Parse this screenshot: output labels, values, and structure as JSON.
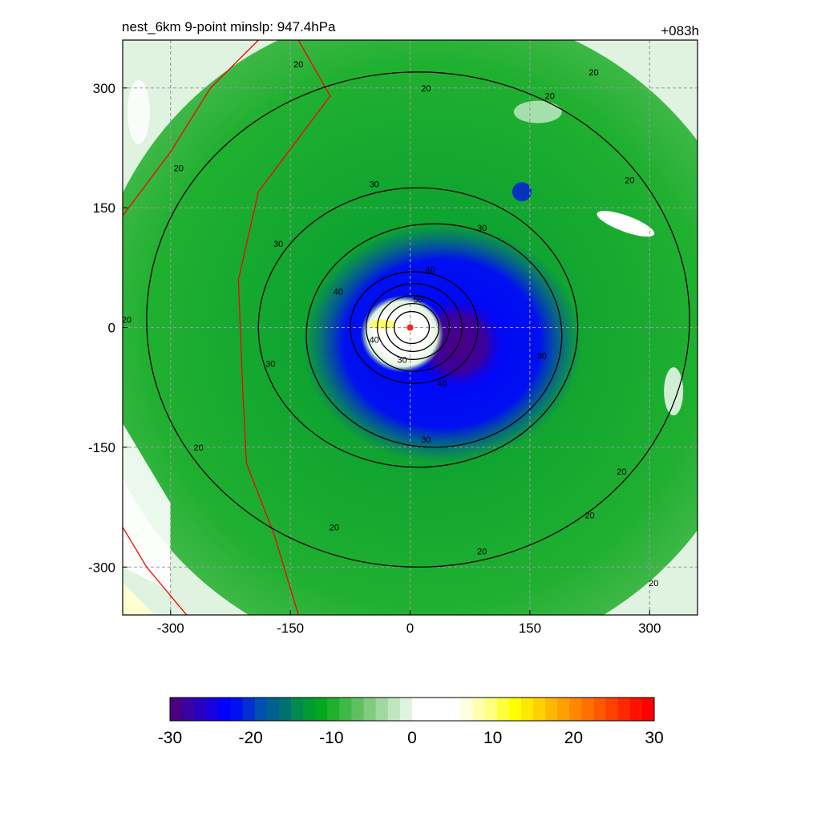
{
  "header": {
    "left": "nest_6km  9-point minslp: 947.4hPa",
    "right": "+083h"
  },
  "chart_data": {
    "type": "heatmap",
    "title": "nest_6km  9-point minslp: 947.4hPa",
    "subtitle": "+083h",
    "xlabel": "",
    "ylabel": "",
    "xlim": [
      -360,
      360
    ],
    "ylim": [
      -360,
      360
    ],
    "x_ticks": [
      -300,
      -150,
      0,
      150,
      300
    ],
    "y_ticks": [
      -300,
      -150,
      0,
      150,
      300
    ],
    "grid": true,
    "center_marker": {
      "x": 0,
      "y": 0,
      "color": "#ff2020"
    },
    "shading": {
      "description_values": "filled field, cool colors negative, warm colors positive",
      "core": {
        "x": 0,
        "y": 0,
        "value": 2
      },
      "min_band": {
        "x": 60,
        "y": -20,
        "value": -28
      }
    },
    "contours": {
      "color": "#000000",
      "levels": [
        20,
        30,
        40,
        50
      ],
      "labels": [
        {
          "x": 20,
          "y": 300,
          "text": "20"
        },
        {
          "x": 230,
          "y": 320,
          "text": "20"
        },
        {
          "x": -140,
          "y": 330,
          "text": "20"
        },
        {
          "x": -290,
          "y": 200,
          "text": "20"
        },
        {
          "x": -355,
          "y": 10,
          "text": "20"
        },
        {
          "x": -265,
          "y": -150,
          "text": "20"
        },
        {
          "x": -95,
          "y": -250,
          "text": "20"
        },
        {
          "x": 90,
          "y": -280,
          "text": "20"
        },
        {
          "x": 265,
          "y": -180,
          "text": "20"
        },
        {
          "x": 225,
          "y": -235,
          "text": "20"
        },
        {
          "x": 305,
          "y": -320,
          "text": "20"
        },
        {
          "x": 175,
          "y": 290,
          "text": "20"
        },
        {
          "x": 275,
          "y": 185,
          "text": "20"
        },
        {
          "x": -45,
          "y": 180,
          "text": "30"
        },
        {
          "x": 90,
          "y": 125,
          "text": "30"
        },
        {
          "x": -165,
          "y": 105,
          "text": "30"
        },
        {
          "x": -175,
          "y": -45,
          "text": "30"
        },
        {
          "x": 165,
          "y": -35,
          "text": "30"
        },
        {
          "x": 20,
          "y": -140,
          "text": "30"
        },
        {
          "x": -90,
          "y": 45,
          "text": "40"
        },
        {
          "x": 25,
          "y": 73,
          "text": "40"
        },
        {
          "x": -45,
          "y": -15,
          "text": "40"
        },
        {
          "x": 40,
          "y": -70,
          "text": "40"
        },
        {
          "x": 10,
          "y": 35,
          "text": "50"
        },
        {
          "x": -10,
          "y": -40,
          "text": "30"
        }
      ]
    },
    "lines": {
      "color": "#ff0000",
      "description": "red boundary lines"
    },
    "colorbar": {
      "ticks": [
        -30,
        -20,
        -10,
        0,
        10,
        20,
        30
      ],
      "colors": [
        "#4b0082",
        "#3a00a0",
        "#2a00c0",
        "#1800e0",
        "#0000ff",
        "#0010f0",
        "#0030d0",
        "#0050b0",
        "#006090",
        "#007070",
        "#008a50",
        "#009a30",
        "#00a820",
        "#20b030",
        "#40b848",
        "#60c060",
        "#80cc80",
        "#a0d8a0",
        "#c0e6c0",
        "#e0f2e0",
        "#ffffff",
        "#ffffff",
        "#ffffff",
        "#ffffff",
        "#ffffe0",
        "#ffffb0",
        "#ffff80",
        "#ffff40",
        "#ffff00",
        "#ffe800",
        "#ffd000",
        "#ffb800",
        "#ffa000",
        "#ff8800",
        "#ff7000",
        "#ff5800",
        "#ff4000",
        "#ff2800",
        "#ff1000",
        "#ff0000"
      ]
    }
  }
}
